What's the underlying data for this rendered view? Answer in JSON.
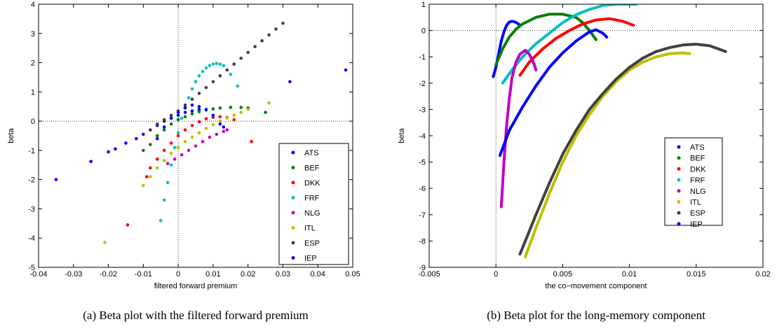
{
  "chart_data": [
    {
      "type": "scatter",
      "xlabel": "filtered forward premium",
      "ylabel": "beta",
      "caption": "(a) Beta plot with the filtered forward premium",
      "xlim": [
        -0.04,
        0.05
      ],
      "xticks": [
        -0.04,
        -0.03,
        -0.02,
        -0.01,
        0,
        0.01,
        0.02,
        0.03,
        0.04,
        0.05
      ],
      "ylim": [
        -5,
        4
      ],
      "yticks": [
        -5,
        -4,
        -3,
        -2,
        -1,
        0,
        1,
        2,
        3,
        4
      ],
      "zero_lines": true,
      "legend": "lower right",
      "series": [
        {
          "name": "ATS",
          "color": "#0000ff",
          "x": [
            -0.035,
            -0.025,
            -0.02,
            -0.018,
            -0.015,
            -0.012,
            -0.01,
            -0.008,
            -0.006,
            -0.004,
            -0.002,
            0,
            0.002,
            0.004,
            0.006,
            0.032,
            0.048
          ],
          "values": [
            -2.0,
            -1.38,
            -1.05,
            -0.95,
            -0.75,
            -0.6,
            -0.45,
            -0.3,
            -0.15,
            0,
            0.1,
            0.2,
            0.3,
            0.35,
            0.4,
            1.35,
            1.75
          ]
        },
        {
          "name": "BEF",
          "color": "#008000",
          "x": [
            -0.01,
            -0.008,
            -0.006,
            -0.004,
            -0.002,
            0,
            0.002,
            0.004,
            0.006,
            0.008,
            0.01,
            0.012,
            0.015,
            0.018,
            0.02,
            0.025
          ],
          "values": [
            -1.0,
            -0.8,
            -0.5,
            -0.3,
            -0.1,
            0.05,
            0.15,
            0.25,
            0.32,
            0.38,
            0.42,
            0.45,
            0.47,
            0.47,
            0.45,
            0.3
          ]
        },
        {
          "name": "DKK",
          "color": "#ff0000",
          "x": [
            -0.009,
            -0.008,
            -0.006,
            -0.004,
            -0.002,
            0,
            0.002,
            0.004,
            0.006,
            0.008,
            0.01,
            0.012,
            0.014,
            0.016,
            -0.0145,
            0.021
          ],
          "values": [
            -1.9,
            -1.6,
            -1.3,
            -1.0,
            -0.75,
            -0.5,
            -0.3,
            -0.15,
            -0.02,
            0.08,
            0.13,
            0.15,
            0.12,
            0.05,
            -3.55,
            -0.7
          ]
        },
        {
          "name": "FRF",
          "color": "#00bfbf",
          "x": [
            -0.005,
            -0.004,
            -0.003,
            -0.002,
            -0.001,
            0,
            0.001,
            0.002,
            0.003,
            0.004,
            0.005,
            0.006,
            0.007,
            0.008,
            0.009,
            0.01,
            0.011,
            0.012,
            0.013,
            0.015,
            0.017
          ],
          "values": [
            -3.4,
            -2.7,
            -2.1,
            -1.5,
            -0.9,
            -0.4,
            0.1,
            0.5,
            0.8,
            1.1,
            1.35,
            1.55,
            1.7,
            1.82,
            1.9,
            1.95,
            1.97,
            1.95,
            1.9,
            1.6,
            1.2
          ]
        },
        {
          "name": "NLG",
          "color": "#bf00bf",
          "x": [
            -0.003,
            -0.001,
            0.001,
            0.003,
            0.005,
            0.007,
            0.009,
            0.011,
            0.013,
            0.014
          ],
          "values": [
            -1.45,
            -1.3,
            -1.15,
            -1.0,
            -0.85,
            -0.7,
            -0.55,
            -0.45,
            -0.35,
            -0.3
          ]
        },
        {
          "name": "ITL",
          "color": "#bfbf00",
          "x": [
            -0.01,
            -0.008,
            -0.006,
            -0.004,
            -0.002,
            0,
            0.002,
            0.004,
            0.006,
            0.008,
            0.01,
            0.012,
            0.014,
            0.016,
            0.018,
            0.02,
            0.026,
            -0.021
          ],
          "values": [
            -2.2,
            -1.9,
            -1.6,
            -1.35,
            -1.1,
            -0.9,
            -0.7,
            -0.55,
            -0.4,
            -0.25,
            -0.12,
            0,
            0.1,
            0.2,
            0.3,
            0.4,
            0.62,
            -4.15
          ]
        },
        {
          "name": "ESP",
          "color": "#404040",
          "x": [
            -0.008,
            -0.006,
            -0.004,
            -0.002,
            0,
            0.002,
            0.004,
            0.006,
            0.008,
            0.01,
            0.012,
            0.014,
            0.016,
            0.018,
            0.02,
            0.022,
            0.024,
            0.026,
            0.028,
            0.03
          ],
          "values": [
            -0.3,
            -0.1,
            0.05,
            0.2,
            0.35,
            0.55,
            0.75,
            0.95,
            1.15,
            1.35,
            1.55,
            1.75,
            1.95,
            2.15,
            2.35,
            2.55,
            2.75,
            2.95,
            3.15,
            3.35
          ]
        },
        {
          "name": "IEP",
          "color": "#0000ff",
          "x": [
            -0.006,
            -0.004,
            -0.002,
            0,
            0.002,
            0.004,
            0.006,
            0.008,
            0.01,
            0.012,
            0.013
          ],
          "values": [
            -0.6,
            -0.2,
            0.1,
            0.3,
            0.45,
            0.55,
            0.5,
            0.4,
            0.2,
            -0.1,
            -0.2
          ]
        }
      ]
    },
    {
      "type": "line",
      "xlabel": "the co−movement component",
      "ylabel": "beta",
      "caption": "(b) Beta plot for the long-memory component",
      "xlim": [
        -0.005,
        0.02
      ],
      "xticks": [
        -0.005,
        0,
        0.005,
        0.01,
        0.015,
        0.02
      ],
      "ylim": [
        -9,
        1
      ],
      "yticks": [
        -9,
        -8,
        -7,
        -6,
        -5,
        -4,
        -3,
        -2,
        -1,
        0,
        1
      ],
      "zero_lines": true,
      "legend": "lower right",
      "series": [
        {
          "name": "ATS",
          "color": "#0000ff",
          "x": [
            -0.0002,
            0,
            0.0002,
            0.0004,
            0.0006,
            0.0008,
            0.001,
            0.0012,
            0.0014,
            0.0016,
            0.0018
          ],
          "values": [
            -1.75,
            -1.4,
            -0.9,
            -0.4,
            -0.05,
            0.2,
            0.32,
            0.35,
            0.33,
            0.28,
            0.2
          ]
        },
        {
          "name": "BEF",
          "color": "#008000",
          "x": [
            0,
            0.0005,
            0.001,
            0.0015,
            0.002,
            0.003,
            0.004,
            0.005,
            0.006,
            0.0065,
            0.007,
            0.0075
          ],
          "values": [
            -1.3,
            -0.7,
            -0.25,
            0.05,
            0.25,
            0.5,
            0.62,
            0.62,
            0.5,
            0.3,
            0,
            -0.35
          ]
        },
        {
          "name": "DKK",
          "color": "#ff0000",
          "x": [
            0.0018,
            0.0025,
            0.0035,
            0.0045,
            0.0055,
            0.0065,
            0.0075,
            0.0085,
            0.0095,
            0.0103
          ],
          "values": [
            -1.7,
            -1.2,
            -0.7,
            -0.3,
            0,
            0.25,
            0.4,
            0.45,
            0.35,
            0.2
          ]
        },
        {
          "name": "FRF",
          "color": "#00bfbf",
          "x": [
            0.0005,
            0.0012,
            0.002,
            0.003,
            0.004,
            0.005,
            0.006,
            0.007,
            0.008,
            0.009,
            0.0105
          ],
          "values": [
            -2.0,
            -1.5,
            -1.0,
            -0.5,
            -0.1,
            0.3,
            0.6,
            0.8,
            0.95,
            1.0,
            1.0
          ]
        },
        {
          "name": "NLG",
          "color": "#bf00bf",
          "x": [
            0.0004,
            0.0006,
            0.0008,
            0.001,
            0.0012,
            0.0015,
            0.0018,
            0.0022,
            0.0025,
            0.0028,
            0.003
          ],
          "values": [
            -6.7,
            -5.0,
            -3.6,
            -2.6,
            -1.8,
            -1.2,
            -0.9,
            -0.75,
            -0.9,
            -1.2,
            -1.5
          ]
        },
        {
          "name": "ITL",
          "color": "#bfbf00",
          "x": [
            0.0022,
            0.003,
            0.004,
            0.005,
            0.006,
            0.007,
            0.008,
            0.009,
            0.01,
            0.011,
            0.012,
            0.013,
            0.014,
            0.0145
          ],
          "values": [
            -8.6,
            -7.5,
            -6.2,
            -5.0,
            -4.0,
            -3.2,
            -2.5,
            -1.95,
            -1.5,
            -1.2,
            -1.0,
            -0.88,
            -0.85,
            -0.88
          ]
        },
        {
          "name": "ESP",
          "color": "#404040",
          "x": [
            0.0018,
            0.003,
            0.004,
            0.005,
            0.006,
            0.007,
            0.008,
            0.009,
            0.01,
            0.011,
            0.012,
            0.013,
            0.014,
            0.015,
            0.016,
            0.0172
          ],
          "values": [
            -8.5,
            -7.0,
            -5.8,
            -4.7,
            -3.8,
            -3.0,
            -2.4,
            -1.85,
            -1.4,
            -1.05,
            -0.8,
            -0.65,
            -0.55,
            -0.52,
            -0.58,
            -0.8
          ]
        },
        {
          "name": "IEP",
          "color": "#0000ff",
          "x": [
            0.0003,
            0.001,
            0.002,
            0.003,
            0.004,
            0.005,
            0.006,
            0.007,
            0.0075,
            0.008,
            0.0083
          ],
          "values": [
            -4.75,
            -3.8,
            -2.9,
            -2.1,
            -1.4,
            -0.85,
            -0.4,
            -0.05,
            0.03,
            -0.1,
            -0.25
          ]
        }
      ]
    }
  ]
}
